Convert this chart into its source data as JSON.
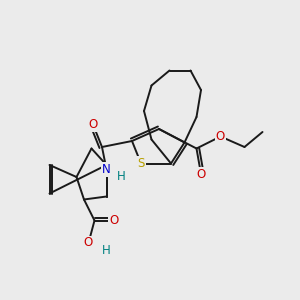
{
  "background_color": "#ebebeb",
  "bond_color": "#1a1a1a",
  "S_color": "#b8a000",
  "N_color": "#0000cc",
  "O_color": "#cc0000",
  "H_color": "#008080",
  "line_width": 1.4,
  "figsize": [
    3.0,
    3.0
  ],
  "dpi": 100,
  "xlim": [
    0,
    10
  ],
  "ylim": [
    0,
    10
  ]
}
